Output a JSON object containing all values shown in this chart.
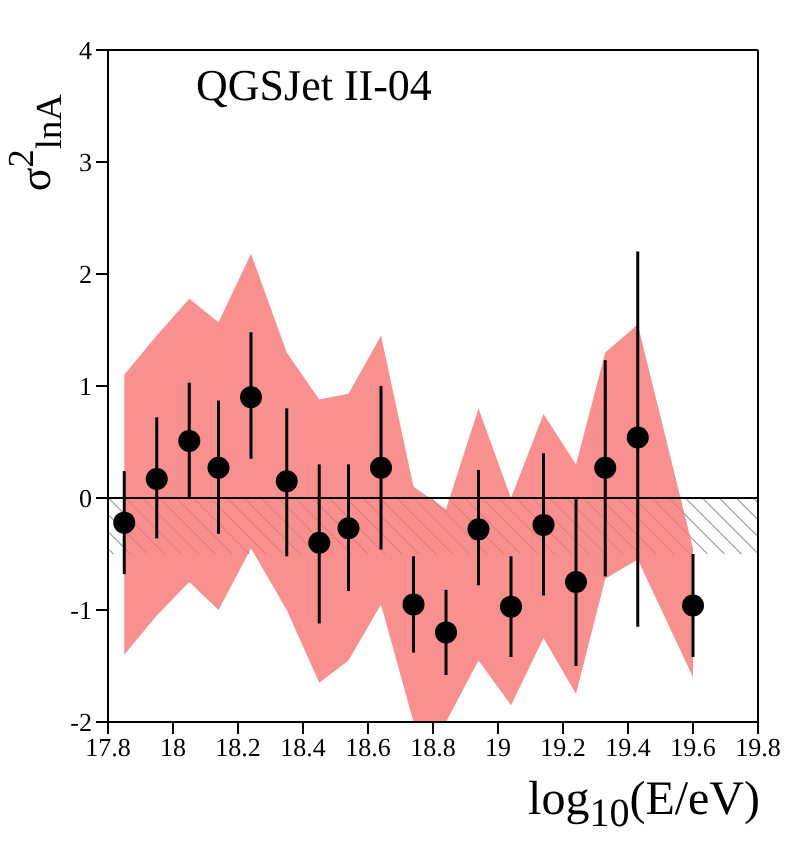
{
  "chart_data": {
    "type": "scatter",
    "title": "QGSJet II-04",
    "xlabel": "log$_{10}$(E/eV)",
    "ylabel": "σ$^{2}$$_{lnA}$",
    "xlim": [
      17.8,
      19.8
    ],
    "xticks": [
      {
        "value": 17.8,
        "label": "17.8"
      },
      18,
      {
        "value": 18.2,
        "label": "18.2"
      },
      {
        "value": 18.4,
        "label": "18.4"
      },
      {
        "value": 18.6,
        "label": "18.6"
      },
      {
        "value": 18.8,
        "label": "18.8"
      },
      19,
      {
        "value": 19.2,
        "label": "19.2"
      },
      {
        "value": 19.4,
        "label": "19.4"
      },
      {
        "value": 19.6,
        "label": "19.6"
      },
      {
        "value": 19.8,
        "label": "19.8"
      }
    ],
    "ylim": [
      -2,
      4
    ],
    "yticks": [
      -2,
      -1,
      0,
      1,
      2,
      3,
      4
    ],
    "marker": "circle",
    "grid": false,
    "legend": false,
    "ref_lines": [
      {
        "axis": "y",
        "value": 0,
        "color": "#000000"
      }
    ],
    "bands": [
      {
        "axis": "y",
        "from": -0.5,
        "to": 0,
        "color": "#888888"
      }
    ],
    "series": [
      {
        "color": "#000000",
        "x": [
          17.85,
          17.95,
          18.05,
          18.14,
          18.24,
          18.35,
          18.45,
          18.54,
          18.64,
          18.74,
          18.84,
          18.94,
          19.04,
          19.14,
          19.24,
          19.33,
          19.43,
          19.6
        ],
        "values": [
          -0.22,
          0.17,
          0.51,
          0.27,
          0.9,
          0.15,
          -0.4,
          -0.27,
          0.27,
          -0.95,
          -1.2,
          -0.28,
          -0.97,
          -0.24,
          -0.75,
          0.27,
          0.54,
          -0.96
        ],
        "errors": [
          [
            -0.68,
            0.24
          ],
          [
            -0.36,
            0.72
          ],
          [
            0.0,
            1.03
          ],
          [
            -0.32,
            0.87
          ],
          [
            0.35,
            1.48
          ],
          [
            -0.52,
            0.8
          ],
          [
            -1.12,
            0.3
          ],
          [
            -0.83,
            0.3
          ],
          [
            -0.46,
            1.0
          ],
          [
            -1.38,
            -0.52
          ],
          [
            -1.58,
            -0.82
          ],
          [
            -0.78,
            0.25
          ],
          [
            -1.42,
            -0.52
          ],
          [
            -0.87,
            0.4
          ],
          [
            -1.5,
            0.0
          ],
          [
            -0.7,
            1.23
          ],
          [
            -1.15,
            2.2
          ],
          [
            -1.42,
            -0.5
          ]
        ],
        "lower": [
          -1.4,
          -1.05,
          -0.75,
          -1.0,
          -0.45,
          -1.0,
          -1.65,
          -1.45,
          -0.95,
          -2.0,
          -2.0,
          -1.45,
          -1.85,
          -1.25,
          -1.75,
          -0.72,
          -0.55,
          -1.6
        ],
        "upper": [
          1.1,
          1.45,
          1.78,
          1.57,
          2.18,
          1.3,
          0.88,
          0.93,
          1.45,
          0.1,
          -0.1,
          0.8,
          0.0,
          0.75,
          0.3,
          1.3,
          1.55,
          -0.45
        ]
      }
    ]
  }
}
